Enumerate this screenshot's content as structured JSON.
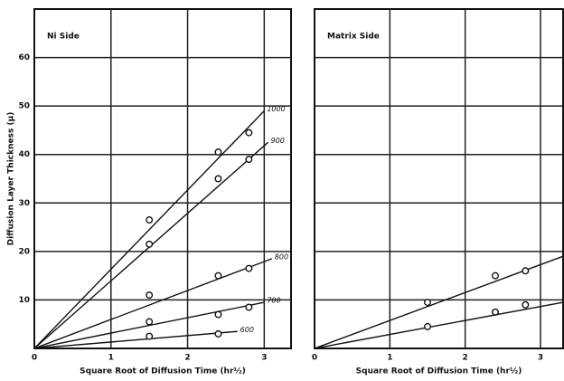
{
  "chart_data": [
    {
      "type": "scatter",
      "title": "Ni Side",
      "xlabel": "Square Root of Diffusion Time (hr½)",
      "ylabel": "Diffusion Layer Thickness (μ)",
      "xlim": [
        0,
        3.35
      ],
      "ylim": [
        0,
        70
      ],
      "xticks": [
        0,
        1,
        2,
        3
      ],
      "yticks": [
        10,
        20,
        30,
        40,
        50,
        60
      ],
      "ytick_labels": true,
      "grid": true,
      "series": [
        {
          "name": "1000",
          "x": [
            1.5,
            2.4,
            2.8
          ],
          "values": [
            26.5,
            40.5,
            44.5
          ],
          "fit": {
            "x": [
              0,
              3.0
            ],
            "values": [
              0,
              49
            ]
          }
        },
        {
          "name": "900",
          "x": [
            1.5,
            2.4,
            2.8
          ],
          "values": [
            21.5,
            35,
            39
          ],
          "fit": {
            "x": [
              0,
              3.05
            ],
            "values": [
              0,
              42.5
            ]
          }
        },
        {
          "name": "800",
          "x": [
            1.5,
            2.4,
            2.8
          ],
          "values": [
            11,
            15,
            16.5
          ],
          "fit": {
            "x": [
              0,
              3.1
            ],
            "values": [
              0,
              18.5
            ]
          }
        },
        {
          "name": "700",
          "x": [
            1.5,
            2.4,
            2.8
          ],
          "values": [
            5.5,
            7,
            8.5
          ],
          "fit": {
            "x": [
              0,
              3.0
            ],
            "values": [
              0,
              9.5
            ]
          }
        },
        {
          "name": "600",
          "x": [
            1.5,
            2.4
          ],
          "values": [
            2.5,
            3
          ],
          "fit": {
            "x": [
              0,
              2.65
            ],
            "values": [
              0,
              3.5
            ]
          }
        }
      ]
    },
    {
      "type": "scatter",
      "title": "Matrix Side",
      "xlabel": "Square Root of Diffusion Time (hr½)",
      "xlim": [
        0,
        3.3
      ],
      "ylim": [
        0,
        70
      ],
      "xticks": [
        0,
        1,
        2,
        3
      ],
      "yticks": [
        10,
        20,
        30,
        40,
        50,
        60
      ],
      "ytick_labels": false,
      "grid": true,
      "series": [
        {
          "name": "1000",
          "x": [
            1.5,
            2.4,
            2.8
          ],
          "values": [
            9.5,
            15,
            16
          ],
          "fit": {
            "x": [
              0,
              3.3
            ],
            "values": [
              0,
              19
            ]
          }
        },
        {
          "name": "900",
          "x": [
            1.5,
            2.4,
            2.8
          ],
          "values": [
            4.5,
            7.5,
            9
          ],
          "fit": {
            "x": [
              0,
              3.3
            ],
            "values": [
              0,
              9.5
            ]
          }
        }
      ]
    }
  ]
}
